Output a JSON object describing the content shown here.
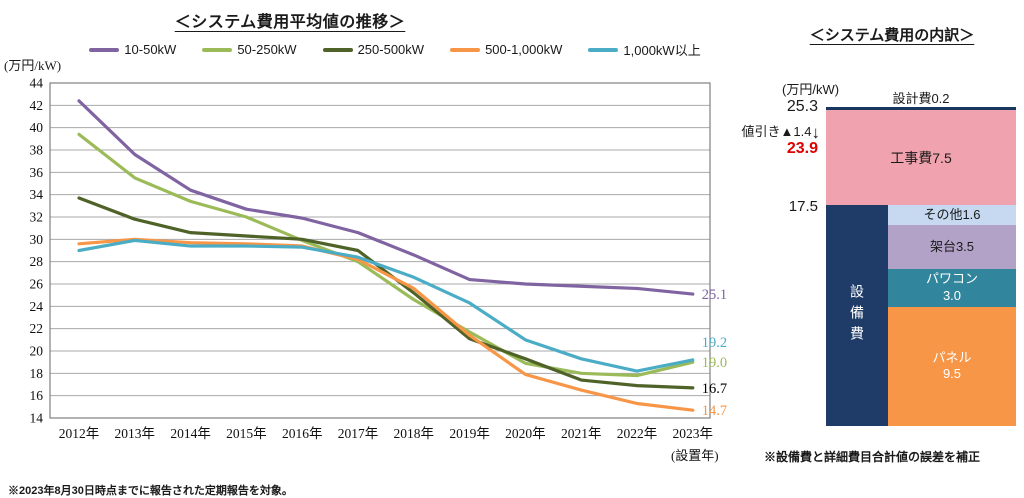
{
  "chart_data": [
    {
      "type": "line",
      "title": "＜システム費用平均値の推移＞",
      "ylabel": "(万円/kW)",
      "xlabel": "(設置年)",
      "ylim": [
        14,
        44
      ],
      "ytick_step": 2,
      "grid": "horizontal",
      "legend_position": "top",
      "footnote": "※2023年8月30日時点までに報告された定期報告を対象。",
      "categories": [
        "2012年",
        "2013年",
        "2014年",
        "2015年",
        "2016年",
        "2017年",
        "2018年",
        "2019年",
        "2020年",
        "2021年",
        "2022年",
        "2023年"
      ],
      "series": [
        {
          "name": "10-50kW",
          "color": "#8064A2",
          "end_label": "25.1",
          "end_label_color": "#8064A2",
          "values": [
            42.4,
            37.6,
            34.4,
            32.7,
            31.9,
            30.6,
            28.6,
            26.4,
            26.0,
            25.8,
            25.6,
            25.1
          ]
        },
        {
          "name": "50-250kW",
          "color": "#9BBB59",
          "end_label": "19.0",
          "end_label_color": "#9BBB59",
          "values": [
            39.4,
            35.5,
            33.4,
            32.0,
            29.9,
            28.0,
            24.6,
            21.7,
            18.9,
            18.0,
            17.8,
            19.0
          ]
        },
        {
          "name": "250-500kW",
          "color": "#4F6228",
          "end_label": "16.7",
          "end_label_color": "#000000",
          "values": [
            33.7,
            31.8,
            30.6,
            30.3,
            30.0,
            29.0,
            25.2,
            21.1,
            19.3,
            17.4,
            16.9,
            16.7
          ]
        },
        {
          "name": "500-1,000kW",
          "color": "#F79646",
          "end_label": "14.7",
          "end_label_color": "#F79646",
          "values": [
            29.6,
            30.0,
            29.7,
            29.6,
            29.4,
            28.2,
            25.6,
            21.4,
            17.9,
            16.5,
            15.3,
            14.7
          ]
        },
        {
          "name": "1,000kW以上",
          "color": "#4BACC6",
          "end_label": "19.2",
          "end_label_color": "#4BACC6",
          "values": [
            29.0,
            29.9,
            29.4,
            29.4,
            29.3,
            28.4,
            26.6,
            24.3,
            21.0,
            19.3,
            18.2,
            19.2
          ]
        }
      ]
    },
    {
      "type": "stacked-bar",
      "title": "＜システム費用の内訳＞",
      "ylabel": "(万円/kW)",
      "footnote": "※設備費と詳細費目合計値の誤差を補正",
      "total": 25.3,
      "total_label": "25.3",
      "discount_label": "値引き▲1.4",
      "arrow_glyph": "↓",
      "net_label": "23.9",
      "design": {
        "label": "設計費0.2",
        "value": 0.2,
        "color": "#17375E"
      },
      "construction": {
        "label": "工事費7.5",
        "value": 7.5,
        "color": "#F0A3AE"
      },
      "equipment": {
        "label": "設備費",
        "total": 17.5,
        "total_label": "17.5",
        "color": "#1F3C68",
        "components": [
          {
            "label": "その他",
            "value": 1.6,
            "value_label": "1.6",
            "color": "#C6D9F1",
            "text_color": "#1a1a1a",
            "inline": true
          },
          {
            "label": "架台",
            "value": 3.5,
            "value_label": "3.5",
            "color": "#B3A2C7",
            "text_color": "#1a1a1a",
            "inline": true
          },
          {
            "label": "パワコン",
            "value": 3.0,
            "value_label": "3.0",
            "color": "#31859C",
            "text_color": "#ffffff",
            "inline": false
          },
          {
            "label": "パネル",
            "value": 9.5,
            "value_label": "9.5",
            "color": "#F79646",
            "text_color": "#ffffff",
            "inline": false
          }
        ]
      }
    }
  ]
}
